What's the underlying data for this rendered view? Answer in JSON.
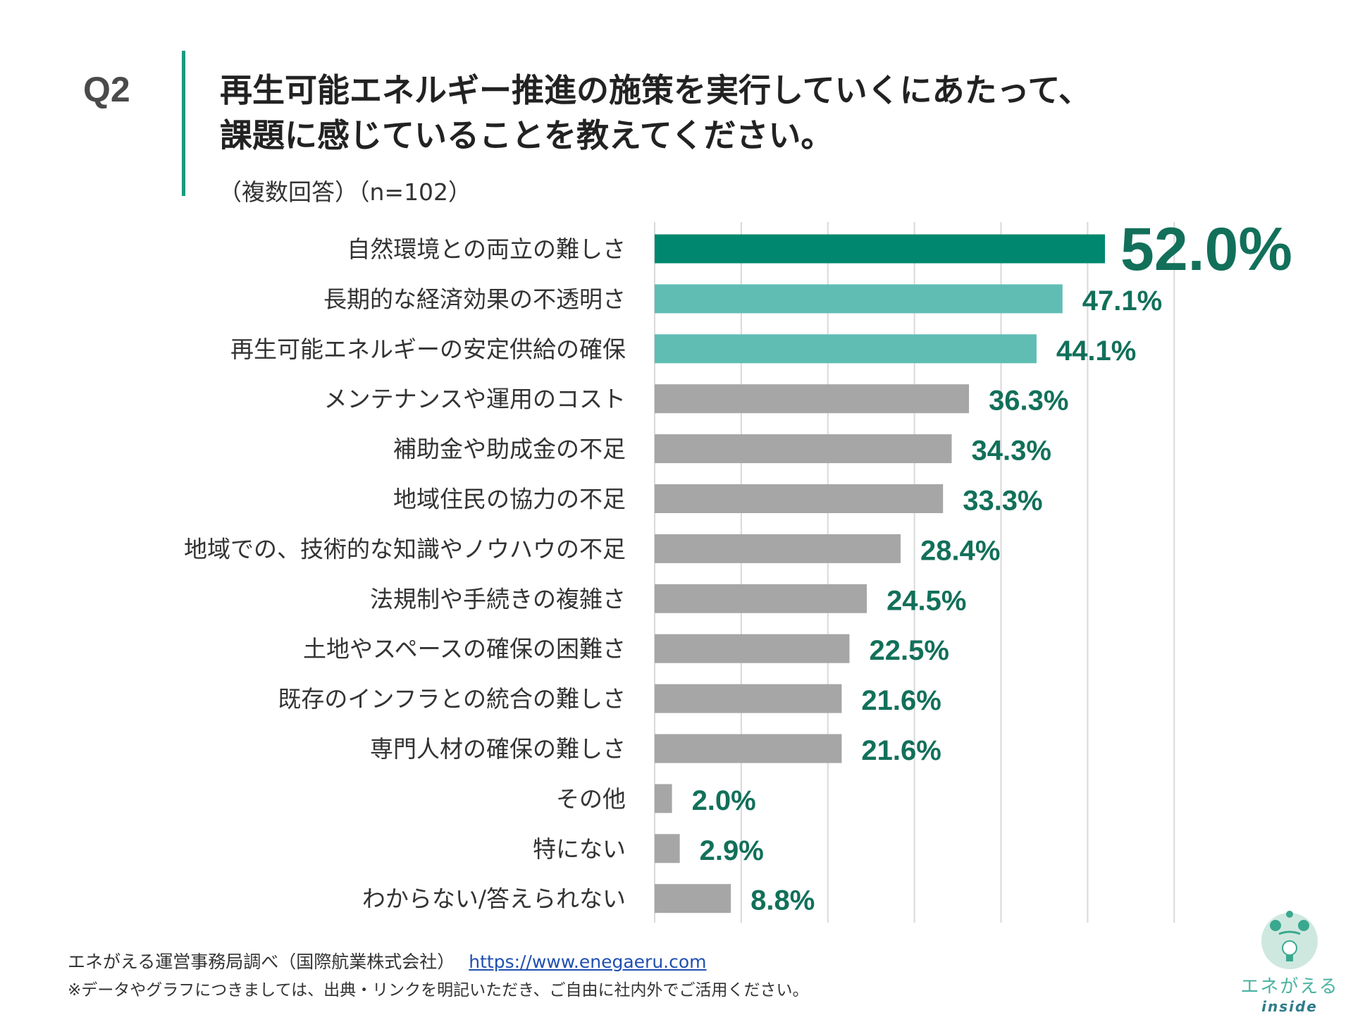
{
  "header": {
    "question": "Q2",
    "title_line1": "再生可能エネルギー推進の施策を実行していくにあたって、",
    "title_line2": "課題に感じていることを教えてください。",
    "subtitle": "（複数回答）（n=102）"
  },
  "chart_data": {
    "type": "bar",
    "orientation": "horizontal",
    "xlim": [
      0,
      60
    ],
    "grid": true,
    "gridlines_every": 10,
    "categories": [
      "自然環境との両立の難しさ",
      "長期的な経済効果の不透明さ",
      "再生可能エネルギーの安定供給の確保",
      "メンテナンスや運用のコスト",
      "補助金や助成金の不足",
      "地域住民の協力の不足",
      "地域での、技術的な知識やノウハウの不足",
      "法規制や手続きの複雑さ",
      "土地やスペースの確保の困難さ",
      "既存のインフラとの統合の難しさ",
      "専門人材の確保の難しさ",
      "その他",
      "特にない",
      "わからない/答えられない"
    ],
    "values": [
      52.0,
      47.1,
      44.1,
      36.3,
      34.3,
      33.3,
      28.4,
      24.5,
      22.5,
      21.6,
      21.6,
      2.0,
      2.9,
      8.8
    ],
    "value_labels": [
      "52.0%",
      "47.1%",
      "44.1%",
      "36.3%",
      "34.3%",
      "33.3%",
      "28.4%",
      "24.5%",
      "22.5%",
      "21.6%",
      "21.6%",
      "2.0%",
      "2.9%",
      "8.8%"
    ],
    "bar_colors": [
      "#00876f",
      "#5fbdb3",
      "#5fbdb3",
      "#a6a6a6",
      "#a6a6a6",
      "#a6a6a6",
      "#a6a6a6",
      "#a6a6a6",
      "#a6a6a6",
      "#a6a6a6",
      "#a6a6a6",
      "#a6a6a6",
      "#a6a6a6",
      "#a6a6a6"
    ],
    "label_color": "#12705a"
  },
  "footer": {
    "source": "エネがえる運営事務局調べ（国際航業株式会社）",
    "url": "https://www.enegaeru.com",
    "note": "※データやグラフにつきましては、出典・リンクを明記いただき、ご自由に社内外でご活用ください。"
  },
  "logo": {
    "text_jp": "エネがえる",
    "text_en": "inside"
  }
}
